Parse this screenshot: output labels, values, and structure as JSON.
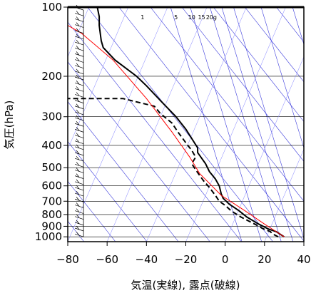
{
  "chart_data": {
    "type": "line",
    "title": "",
    "xlabel": "気温(実線), 露点(破線)",
    "ylabel": "気圧(hPa)",
    "xlim": [
      -80,
      40
    ],
    "ylim": [
      1050,
      100
    ],
    "y_scale": "log",
    "x_ticks": [
      "−80",
      "−60",
      "−40",
      "−20",
      "0",
      "20",
      "40"
    ],
    "x_tick_values": [
      -80,
      -60,
      -40,
      -20,
      0,
      20,
      40
    ],
    "y_ticks": [
      "100",
      "200",
      "300",
      "400",
      "500",
      "600",
      "700",
      "800",
      "900",
      "1000"
    ],
    "y_tick_values": [
      100,
      200,
      300,
      400,
      500,
      600,
      700,
      800,
      900,
      1000
    ],
    "mixing_ratio_labels": [
      "1",
      "5",
      "10",
      "15",
      "20g"
    ],
    "series": [
      {
        "style": "solid",
        "color": "#000000",
        "points": [
          [
            30,
            1000
          ],
          [
            26,
            950
          ],
          [
            22,
            925
          ],
          [
            17,
            880
          ],
          [
            11,
            820
          ],
          [
            7,
            770
          ],
          [
            2,
            720
          ],
          [
            -1,
            680
          ],
          [
            -2,
            650
          ],
          [
            -3,
            600
          ],
          [
            -5,
            560
          ],
          [
            -8,
            520
          ],
          [
            -10,
            480
          ],
          [
            -14,
            430
          ],
          [
            -14,
            410
          ],
          [
            -20,
            340
          ],
          [
            -25,
            300
          ],
          [
            -32,
            260
          ],
          [
            -40,
            220
          ],
          [
            -45,
            200
          ],
          [
            -56,
            170
          ],
          [
            -62,
            150
          ],
          [
            -63,
            140
          ],
          [
            -64,
            120
          ],
          [
            -64,
            110
          ],
          [
            -65,
            100
          ]
        ]
      },
      {
        "style": "dashed",
        "color": "#000000",
        "points": [
          [
            27,
            1000
          ],
          [
            24,
            970
          ],
          [
            23,
            950
          ],
          [
            19,
            920
          ],
          [
            15,
            880
          ],
          [
            8,
            820
          ],
          [
            3,
            770
          ],
          [
            0,
            730
          ],
          [
            -3,
            700
          ],
          [
            -5,
            660
          ],
          [
            -8,
            610
          ],
          [
            -11,
            570
          ],
          [
            -13,
            540
          ],
          [
            -15,
            510
          ],
          [
            -17,
            480
          ],
          [
            -15,
            450
          ],
          [
            -17,
            420
          ],
          [
            -19,
            400
          ],
          [
            -24,
            350
          ],
          [
            -27,
            320
          ],
          [
            -33,
            290
          ],
          [
            -36,
            270
          ],
          [
            -52,
            250
          ],
          [
            -70,
            250
          ],
          [
            -80,
            250
          ]
        ]
      },
      {
        "style": "solid",
        "color": "#ff0000",
        "points": [
          [
            30,
            1000
          ],
          [
            20,
            880
          ],
          [
            10,
            770
          ],
          [
            -2,
            660
          ],
          [
            -13,
            530
          ],
          [
            -18,
            450
          ],
          [
            -27,
            350
          ],
          [
            -40,
            250
          ],
          [
            -57,
            170
          ],
          [
            -73,
            130
          ],
          [
            -80,
            120
          ]
        ]
      }
    ],
    "grid": true
  }
}
